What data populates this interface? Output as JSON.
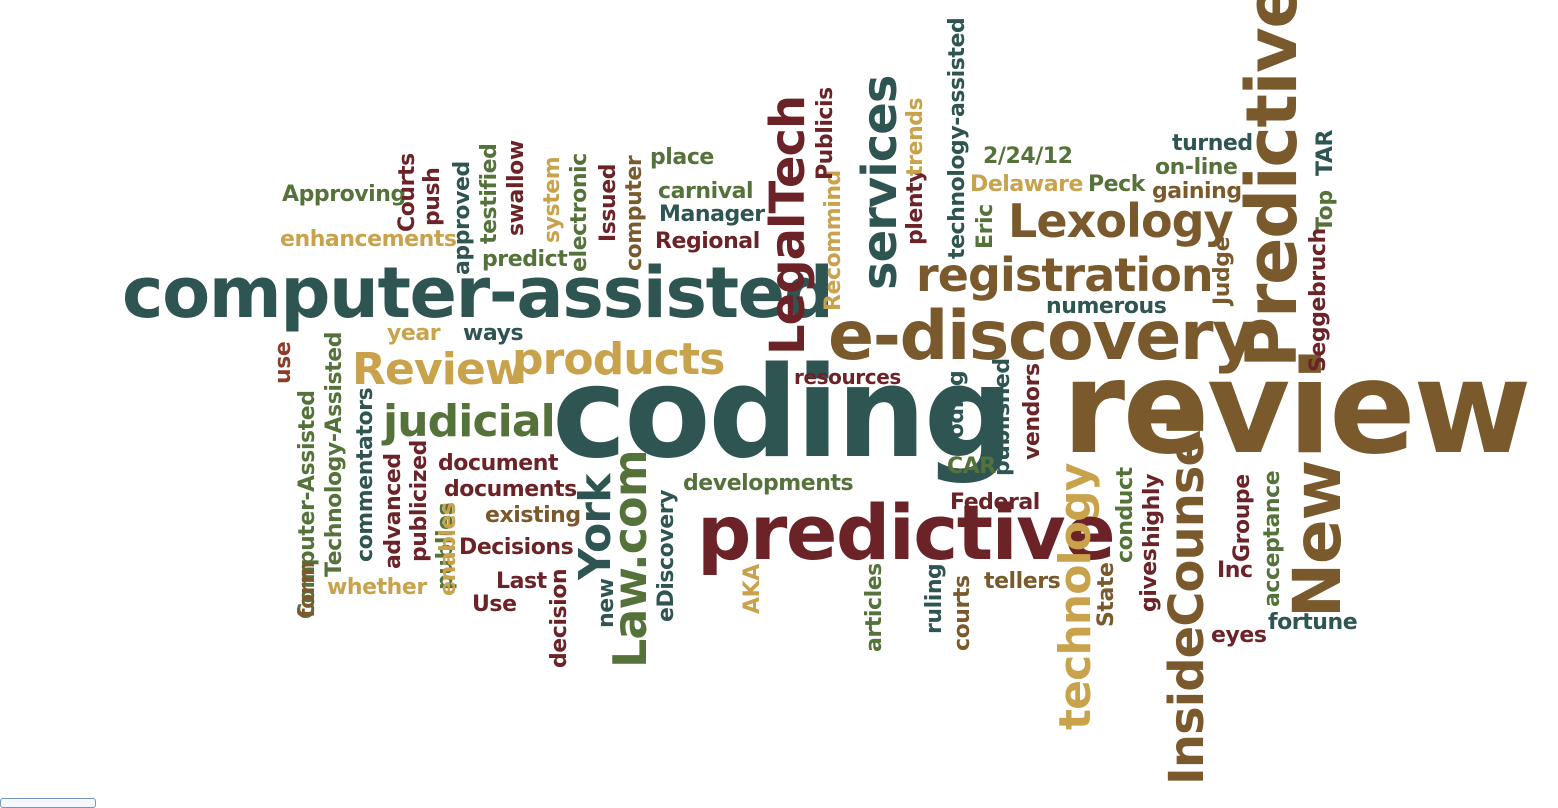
{
  "words": [
    {
      "t": "review",
      "c": "c3"
    },
    {
      "t": "coding",
      "c": "c1"
    },
    {
      "t": "predictive",
      "c": "c2"
    },
    {
      "t": "computer-assisted",
      "c": "c1"
    },
    {
      "t": "e-discovery",
      "c": "c3"
    },
    {
      "t": "Predictive",
      "c": "c3"
    },
    {
      "t": "New",
      "c": "c3"
    },
    {
      "t": "registration",
      "c": "c3"
    },
    {
      "t": "Lexology",
      "c": "c3"
    },
    {
      "t": "products",
      "c": "c4"
    },
    {
      "t": "Review",
      "c": "c4"
    },
    {
      "t": "judicial",
      "c": "c5"
    },
    {
      "t": "LegalTech",
      "c": "c2"
    },
    {
      "t": "services",
      "c": "c1"
    },
    {
      "t": "InsideCounsel",
      "c": "c3"
    },
    {
      "t": "technology",
      "c": "c4"
    },
    {
      "t": "Law.com",
      "c": "c5"
    },
    {
      "t": "York",
      "c": "c1"
    },
    {
      "t": "Approving",
      "c": "c5"
    },
    {
      "t": "enhancements",
      "c": "c4"
    },
    {
      "t": "Courts",
      "c": "c2"
    },
    {
      "t": "push",
      "c": "c2"
    },
    {
      "t": "approved",
      "c": "c1"
    },
    {
      "t": "testified",
      "c": "c5"
    },
    {
      "t": "swallow",
      "c": "c2"
    },
    {
      "t": "system",
      "c": "c4"
    },
    {
      "t": "electronic",
      "c": "c5"
    },
    {
      "t": "Issued",
      "c": "c2"
    },
    {
      "t": "computer",
      "c": "c3"
    },
    {
      "t": "place",
      "c": "c5"
    },
    {
      "t": "carnival",
      "c": "c5"
    },
    {
      "t": "Manager",
      "c": "c1"
    },
    {
      "t": "Regional",
      "c": "c2"
    },
    {
      "t": "predict",
      "c": "c5"
    },
    {
      "t": "year",
      "c": "c4"
    },
    {
      "t": "ways",
      "c": "c1"
    },
    {
      "t": "use",
      "c": "c6"
    },
    {
      "t": "Recommind",
      "c": "c4"
    },
    {
      "t": "Publicis",
      "c": "c2"
    },
    {
      "t": "plenty",
      "c": "c2"
    },
    {
      "t": "trends",
      "c": "c4"
    },
    {
      "t": "technology-assisted",
      "c": "c1"
    },
    {
      "t": "2/24/12",
      "c": "c5"
    },
    {
      "t": "Delaware",
      "c": "c4"
    },
    {
      "t": "Eric",
      "c": "c5"
    },
    {
      "t": "Peck",
      "c": "c5"
    },
    {
      "t": "turned",
      "c": "c1"
    },
    {
      "t": "on-line",
      "c": "c5"
    },
    {
      "t": "gaining",
      "c": "c3"
    },
    {
      "t": "Top",
      "c": "c5"
    },
    {
      "t": "TAR",
      "c": "c1"
    },
    {
      "t": "Seggebruch",
      "c": "c2"
    },
    {
      "t": "Judge",
      "c": "c3"
    },
    {
      "t": "numerous",
      "c": "c1"
    },
    {
      "t": "resources",
      "c": "c2"
    },
    {
      "t": "Coding",
      "c": "c1"
    },
    {
      "t": "CAR",
      "c": "c5"
    },
    {
      "t": "published",
      "c": "c1"
    },
    {
      "t": "vendors",
      "c": "c2"
    },
    {
      "t": "Computer-Assisted",
      "c": "c5"
    },
    {
      "t": "Technology-Assisted",
      "c": "c5"
    },
    {
      "t": "commentators",
      "c": "c1"
    },
    {
      "t": "advanced",
      "c": "c2"
    },
    {
      "t": "publicized",
      "c": "c2"
    },
    {
      "t": "publies",
      "c": "c5"
    },
    {
      "t": "document",
      "c": "c2"
    },
    {
      "t": "documents",
      "c": "c2"
    },
    {
      "t": "existing",
      "c": "c3"
    },
    {
      "t": "Decisions",
      "c": "c2"
    },
    {
      "t": "enables",
      "c": "c4"
    },
    {
      "t": "form",
      "c": "c3"
    },
    {
      "t": "whether",
      "c": "c4"
    },
    {
      "t": "Last",
      "c": "c2"
    },
    {
      "t": "Use",
      "c": "c2"
    },
    {
      "t": "decision",
      "c": "c2"
    },
    {
      "t": "new",
      "c": "c1"
    },
    {
      "t": "eDiscovery",
      "c": "c1"
    },
    {
      "t": "developments",
      "c": "c5"
    },
    {
      "t": "AKA",
      "c": "c4"
    },
    {
      "t": "articles",
      "c": "c5"
    },
    {
      "t": "ruling",
      "c": "c1"
    },
    {
      "t": "courts",
      "c": "c3"
    },
    {
      "t": "Federal",
      "c": "c2"
    },
    {
      "t": "tellers",
      "c": "c3"
    },
    {
      "t": "conduct",
      "c": "c5"
    },
    {
      "t": "State",
      "c": "c3"
    },
    {
      "t": "highly",
      "c": "c2"
    },
    {
      "t": "gives",
      "c": "c2"
    },
    {
      "t": "Groupe",
      "c": "c2"
    },
    {
      "t": "Inc",
      "c": "c2"
    },
    {
      "t": "acceptance",
      "c": "c5"
    },
    {
      "t": "eyes",
      "c": "c2"
    },
    {
      "t": "fortune",
      "c": "c1"
    }
  ]
}
